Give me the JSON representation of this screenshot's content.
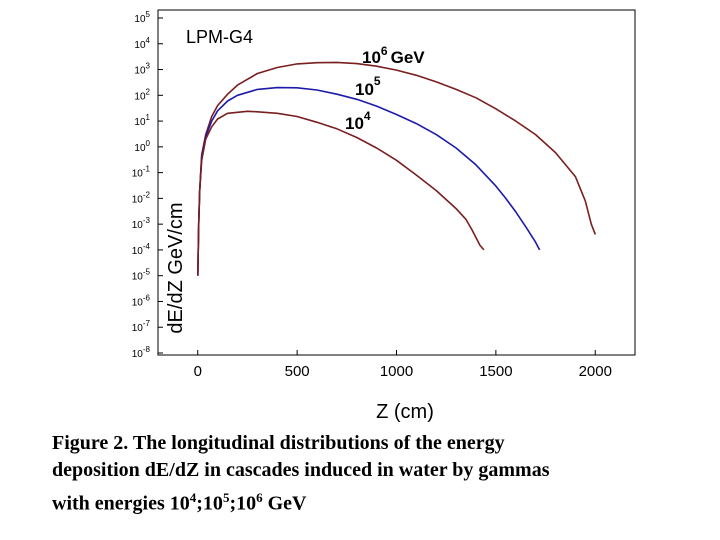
{
  "chart_data": {
    "type": "line",
    "title": "LPM-G4",
    "xlabel": "Z (cm)",
    "ylabel": "dE/dZ GeV/cm",
    "xlim": [
      -200,
      2200
    ],
    "ylim": [
      1e-08,
      100000.0
    ],
    "y_scale": "log",
    "grid": false,
    "x_ticks": [
      "0",
      "500",
      "1000",
      "1500",
      "2000"
    ],
    "x_tick_values": [
      0,
      500,
      1000,
      1500,
      2000
    ],
    "y_ticks": [
      {
        "base": "10",
        "exp": "5",
        "value": 100000.0
      },
      {
        "base": "10",
        "exp": "4",
        "value": 10000.0
      },
      {
        "base": "10",
        "exp": "3",
        "value": 1000.0
      },
      {
        "base": "10",
        "exp": "2",
        "value": 100.0
      },
      {
        "base": "10",
        "exp": "1",
        "value": 10.0
      },
      {
        "base": "10",
        "exp": "0",
        "value": 1.0
      },
      {
        "base": "10",
        "exp": "-1",
        "value": 0.1
      },
      {
        "base": "10",
        "exp": "-2",
        "value": 0.01
      },
      {
        "base": "10",
        "exp": "-3",
        "value": 0.001
      },
      {
        "base": "10",
        "exp": "-4",
        "value": 0.0001
      },
      {
        "base": "10",
        "exp": "-5",
        "value": 1e-05
      },
      {
        "base": "10",
        "exp": "-6",
        "value": 1e-06
      },
      {
        "base": "10",
        "exp": "-7",
        "value": 1e-07
      },
      {
        "base": "10",
        "exp": "-8",
        "value": 1e-08
      }
    ],
    "series": [
      {
        "name": "10^6 GeV",
        "label_base": "10",
        "label_exp": "6",
        "label_unit": "GeV",
        "color": "#7a1f1f",
        "x": [
          0,
          5,
          10,
          20,
          40,
          70,
          100,
          150,
          200,
          300,
          400,
          500,
          600,
          700,
          800,
          900,
          1000,
          1100,
          1200,
          1300,
          1400,
          1500,
          1600,
          1700,
          1800,
          1900,
          1950,
          1980,
          2000
        ],
        "y": [
          1e-05,
          0.001,
          0.02,
          0.5,
          3,
          15,
          40,
          110,
          250,
          700,
          1200,
          1650,
          1850,
          1900,
          1700,
          1350,
          950,
          600,
          330,
          170,
          80,
          30,
          10,
          3,
          0.6,
          0.07,
          0.008,
          0.001,
          0.0004
        ]
      },
      {
        "name": "10^5 GeV",
        "label_base": "10",
        "label_exp": "5",
        "label_unit": "",
        "color": "#1c1ca8",
        "x": [
          0,
          5,
          10,
          20,
          40,
          70,
          100,
          150,
          200,
          300,
          400,
          500,
          600,
          700,
          800,
          900,
          1000,
          1100,
          1200,
          1300,
          1400,
          1500,
          1550,
          1600,
          1650,
          1700,
          1720
        ],
        "y": [
          1e-05,
          0.001,
          0.02,
          0.4,
          2.5,
          10,
          25,
          60,
          100,
          170,
          200,
          195,
          160,
          110,
          70,
          38,
          18,
          8,
          3,
          0.9,
          0.2,
          0.03,
          0.01,
          0.003,
          0.0008,
          0.0002,
          0.0001
        ]
      },
      {
        "name": "10^4 GeV",
        "label_base": "10",
        "label_exp": "4",
        "label_unit": "",
        "color": "#7a1f1f",
        "x": [
          0,
          5,
          10,
          20,
          40,
          70,
          100,
          150,
          200,
          250,
          300,
          400,
          500,
          600,
          700,
          800,
          900,
          1000,
          1100,
          1200,
          1300,
          1350,
          1380,
          1400,
          1420,
          1440
        ],
        "y": [
          1e-05,
          0.001,
          0.02,
          0.3,
          2,
          6,
          12,
          20,
          22,
          24,
          23,
          20,
          15,
          9,
          5,
          2.3,
          0.9,
          0.3,
          0.08,
          0.02,
          0.004,
          0.0015,
          0.0006,
          0.0003,
          0.00015,
          0.0001
        ]
      }
    ]
  },
  "caption": {
    "line1": "Figure 2.  The longitudinal distributions of the energy",
    "line2": "deposition dE/dZ in cascades induced in water by gammas",
    "line3_prefix": "with energies 10",
    "exp4": "4",
    "sep1": ";10",
    "exp5": "5",
    "sep2": ";10",
    "exp6": "6",
    "line3_suffix": " GeV"
  }
}
